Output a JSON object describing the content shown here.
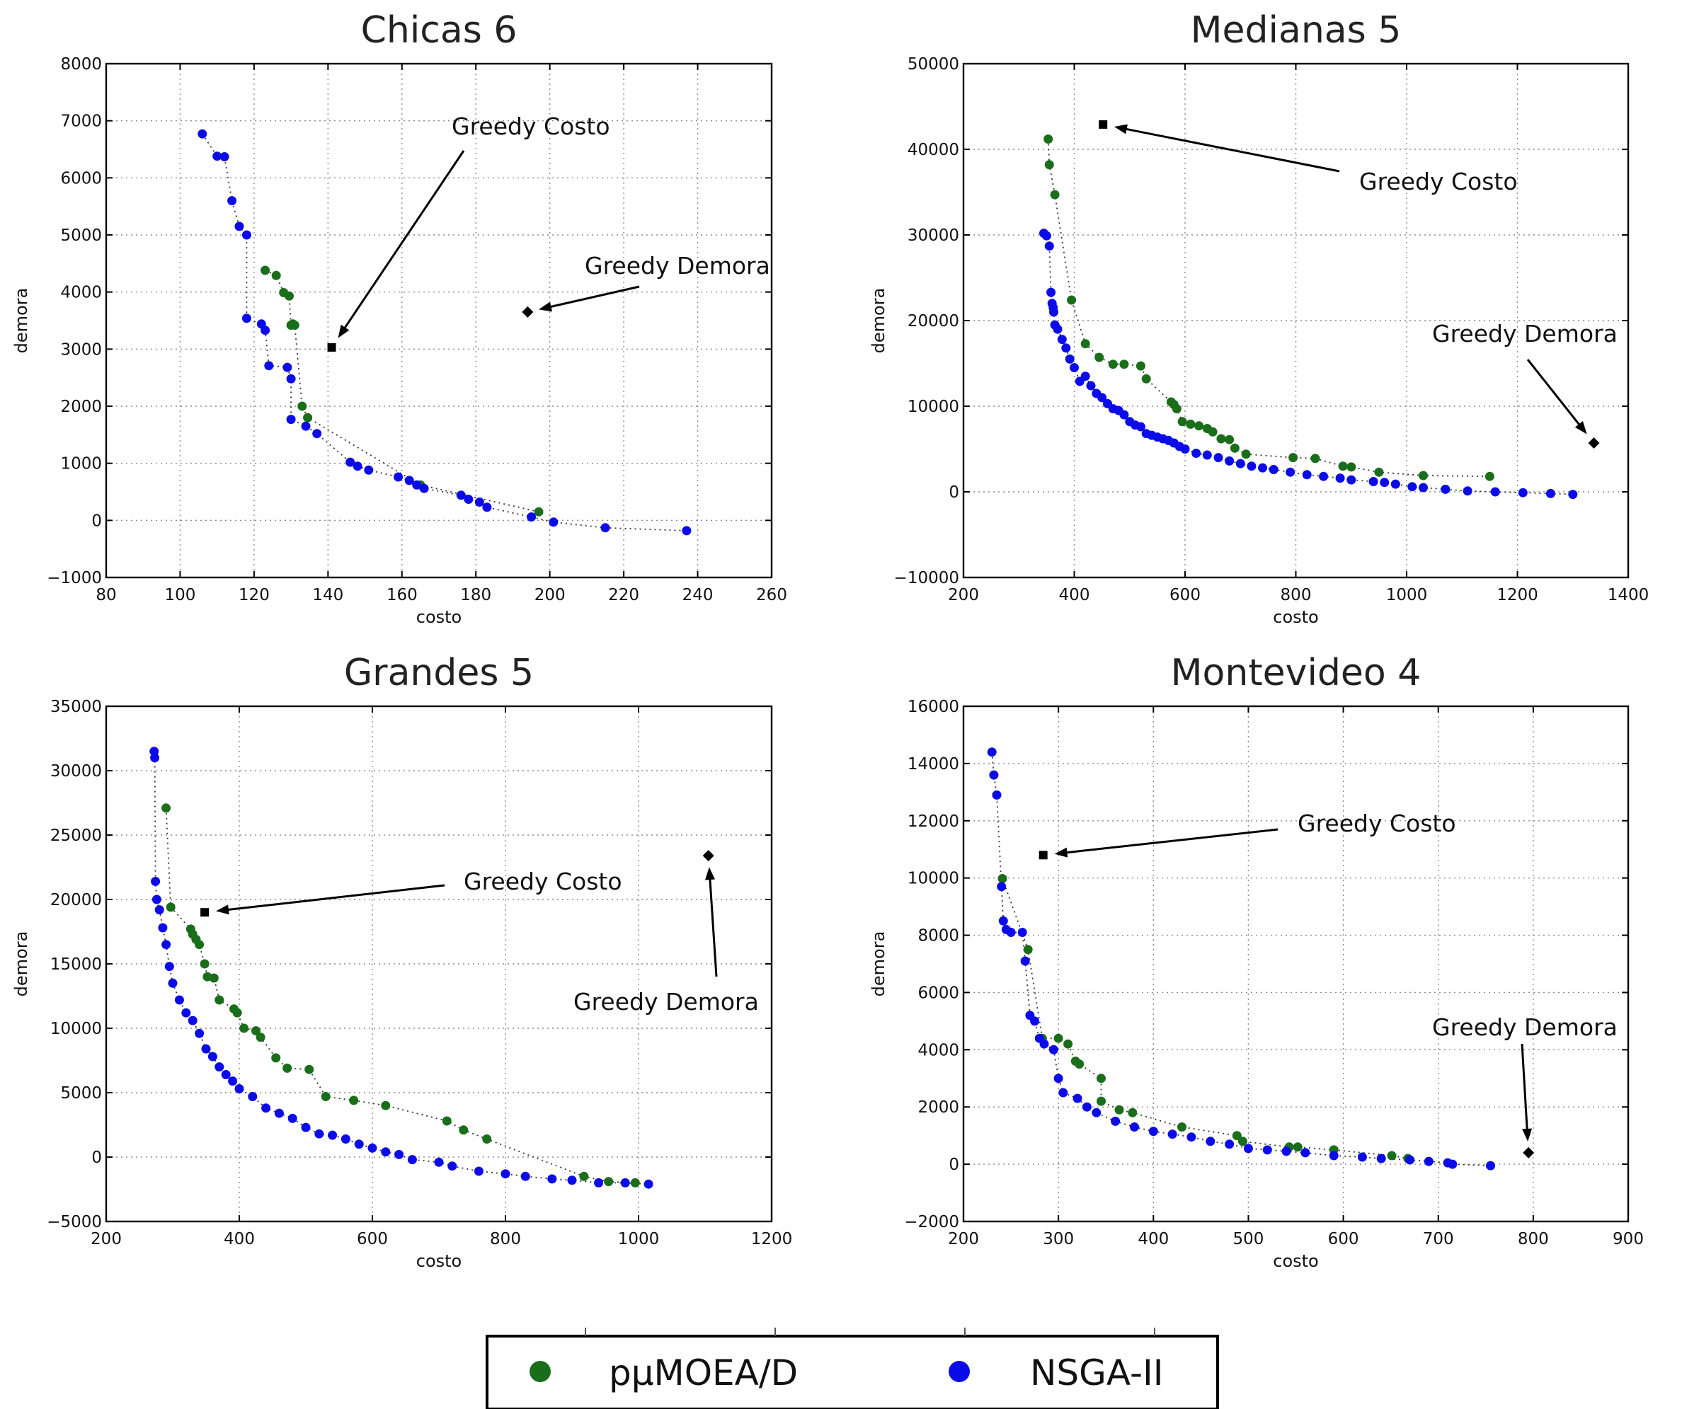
{
  "chart_data": [
    {
      "type": "scatter",
      "title": "Chicas 6",
      "xlabel": "costo",
      "ylabel": "demora",
      "xlim": [
        80,
        260
      ],
      "ylim": [
        -1000,
        8000
      ],
      "xticks": [
        80,
        100,
        120,
        140,
        160,
        180,
        200,
        220,
        240,
        260
      ],
      "yticks": [
        -1000,
        0,
        1000,
        2000,
        3000,
        4000,
        5000,
        6000,
        7000,
        8000
      ],
      "grid": true,
      "series": [
        {
          "name": "pμMOEA/D",
          "color": "#1a6e1a",
          "x": [
            123,
            126,
            128,
            129.5,
            130,
            130.5,
            131,
            133,
            134.5,
            165,
            197
          ],
          "y": [
            4380,
            4290,
            3990,
            3930,
            3420,
            3440,
            3420,
            2000,
            1800,
            620,
            150
          ]
        },
        {
          "name": "NSGA-II",
          "color": "#0b0bea",
          "x": [
            106,
            110,
            112,
            114,
            116,
            118,
            118,
            122,
            123,
            124,
            129,
            130,
            130,
            134,
            137,
            146,
            148,
            151,
            159,
            162,
            164,
            166,
            176,
            178,
            181,
            183,
            195,
            201,
            215,
            237
          ],
          "y": [
            6770,
            6380,
            6370,
            5600,
            5150,
            5000,
            3540,
            3440,
            3330,
            2710,
            2680,
            2480,
            1770,
            1650,
            1520,
            1020,
            950,
            880,
            760,
            700,
            620,
            560,
            440,
            370,
            320,
            230,
            60,
            -30,
            -130,
            -180
          ]
        }
      ],
      "markers": [
        {
          "label": "Greedy Costo",
          "shape": "square",
          "x": 141,
          "y": 3030
        },
        {
          "label": "Greedy Demora",
          "shape": "diamond",
          "x": 194,
          "y": 3650
        }
      ]
    },
    {
      "type": "scatter",
      "title": "Medianas 5",
      "xlabel": "costo",
      "ylabel": "demora",
      "xlim": [
        200,
        1400
      ],
      "ylim": [
        -10000,
        50000
      ],
      "xticks": [
        200,
        400,
        600,
        800,
        1000,
        1200,
        1400
      ],
      "yticks": [
        -10000,
        0,
        10000,
        20000,
        30000,
        40000,
        50000
      ],
      "grid": true,
      "series": [
        {
          "name": "pμMOEA/D",
          "color": "#1a6e1a",
          "x": [
            353,
            355,
            365,
            395,
            420,
            445,
            470,
            490,
            520,
            530,
            575,
            580,
            585,
            595,
            610,
            625,
            640,
            650,
            665,
            680,
            690,
            710,
            795,
            835,
            885,
            900,
            950,
            1030,
            1150
          ],
          "y": [
            41200,
            38200,
            34700,
            22400,
            17300,
            15700,
            14900,
            14900,
            14700,
            13200,
            10500,
            10200,
            9700,
            8200,
            7900,
            7700,
            7400,
            7000,
            6200,
            6100,
            5100,
            4400,
            4000,
            3900,
            3000,
            2900,
            2300,
            1900,
            1800
          ]
        },
        {
          "name": "NSGA-II",
          "color": "#0b0bea",
          "x": [
            345,
            350,
            355,
            358,
            360,
            362,
            363,
            365,
            370,
            378,
            385,
            392,
            400,
            410,
            420,
            430,
            440,
            450,
            460,
            470,
            480,
            490,
            500,
            510,
            520,
            530,
            540,
            550,
            560,
            570,
            580,
            590,
            600,
            620,
            640,
            660,
            680,
            700,
            720,
            740,
            760,
            790,
            820,
            850,
            880,
            900,
            940,
            960,
            980,
            1010,
            1030,
            1070,
            1110,
            1160,
            1210,
            1260,
            1300
          ],
          "y": [
            30200,
            29900,
            28700,
            23300,
            22000,
            21500,
            21000,
            19500,
            19000,
            17800,
            16800,
            15500,
            14500,
            12900,
            13500,
            12400,
            11500,
            11000,
            10300,
            9700,
            9500,
            9000,
            8200,
            7800,
            7600,
            6800,
            6600,
            6400,
            6200,
            6000,
            5700,
            5300,
            5000,
            4500,
            4300,
            4000,
            3600,
            3300,
            3000,
            2800,
            2600,
            2300,
            2000,
            1800,
            1600,
            1400,
            1200,
            1100,
            900,
            600,
            500,
            300,
            100,
            0,
            -100,
            -200,
            -300
          ]
        }
      ],
      "markers": [
        {
          "label": "Greedy Costo",
          "shape": "square",
          "x": 452,
          "y": 42900
        },
        {
          "label": "Greedy Demora",
          "shape": "diamond",
          "x": 1338,
          "y": 5700
        }
      ]
    },
    {
      "type": "scatter",
      "title": "Grandes 5",
      "xlabel": "costo",
      "ylabel": "demora",
      "xlim": [
        200,
        1200
      ],
      "ylim": [
        -5000,
        35000
      ],
      "xticks": [
        200,
        400,
        600,
        800,
        1000,
        1200
      ],
      "yticks": [
        -5000,
        0,
        5000,
        10000,
        15000,
        20000,
        25000,
        30000,
        35000
      ],
      "grid": true,
      "series": [
        {
          "name": "pμMOEA/D",
          "color": "#1a6e1a",
          "x": [
            290,
            297,
            327,
            330,
            335,
            340,
            348,
            352,
            362,
            370,
            392,
            397,
            407,
            425,
            432,
            455,
            472,
            505,
            530,
            572,
            620,
            712,
            737,
            772,
            918,
            955,
            995
          ],
          "y": [
            27100,
            19400,
            17700,
            17300,
            16900,
            16500,
            15000,
            14000,
            13900,
            12200,
            11500,
            11200,
            10000,
            9800,
            9300,
            7700,
            6900,
            6800,
            4700,
            4400,
            4000,
            2800,
            2100,
            1400,
            -1500,
            -1900,
            -2000
          ]
        },
        {
          "name": "NSGA-II",
          "color": "#0b0bea",
          "x": [
            272,
            273,
            274,
            276,
            280,
            285,
            290,
            295,
            300,
            310,
            320,
            330,
            340,
            350,
            360,
            370,
            380,
            390,
            400,
            420,
            440,
            460,
            480,
            500,
            520,
            540,
            560,
            580,
            600,
            620,
            640,
            660,
            700,
            720,
            760,
            800,
            830,
            870,
            900,
            940,
            980,
            1015
          ],
          "y": [
            31500,
            31000,
            21400,
            20000,
            19200,
            17800,
            16500,
            14800,
            13500,
            12200,
            11200,
            10600,
            9600,
            8400,
            7800,
            7000,
            6400,
            5900,
            5300,
            4700,
            3800,
            3400,
            3000,
            2300,
            1800,
            1700,
            1400,
            1000,
            700,
            400,
            200,
            -200,
            -400,
            -700,
            -1100,
            -1300,
            -1500,
            -1700,
            -1800,
            -2000,
            -2000,
            -2100
          ]
        }
      ],
      "markers": [
        {
          "label": "Greedy Costo",
          "shape": "square",
          "x": 348,
          "y": 19000
        },
        {
          "label": "Greedy Demora",
          "shape": "diamond",
          "x": 1105,
          "y": 23400
        }
      ]
    },
    {
      "type": "scatter",
      "title": "Montevideo 4",
      "xlabel": "costo",
      "ylabel": "demora",
      "xlim": [
        200,
        900
      ],
      "ylim": [
        -2000,
        16000
      ],
      "xticks": [
        200,
        300,
        400,
        500,
        600,
        700,
        800,
        900
      ],
      "yticks": [
        -2000,
        0,
        2000,
        4000,
        6000,
        8000,
        10000,
        12000,
        14000,
        16000
      ],
      "grid": true,
      "series": [
        {
          "name": "pμMOEA/D",
          "color": "#1a6e1a",
          "x": [
            241,
            268,
            283,
            300,
            310,
            318,
            322,
            345,
            345,
            364,
            378,
            430,
            488,
            494,
            543,
            552,
            590,
            651,
            668
          ],
          "y": [
            9980,
            7500,
            4400,
            4400,
            4200,
            3600,
            3500,
            3000,
            2200,
            1900,
            1800,
            1300,
            1000,
            800,
            600,
            600,
            500,
            300,
            200
          ]
        },
        {
          "name": "NSGA-II",
          "color": "#0b0bea",
          "x": [
            230,
            232,
            235,
            240,
            242,
            245,
            250,
            262,
            265,
            270,
            275,
            280,
            285,
            295,
            300,
            305,
            320,
            330,
            340,
            360,
            380,
            400,
            420,
            440,
            460,
            480,
            500,
            520,
            540,
            560,
            590,
            620,
            640,
            670,
            690,
            710,
            715,
            755
          ],
          "y": [
            14400,
            13600,
            12900,
            9700,
            8500,
            8200,
            8100,
            8100,
            7100,
            5200,
            5000,
            4400,
            4200,
            4000,
            3000,
            2500,
            2300,
            2000,
            1800,
            1500,
            1300,
            1150,
            1050,
            950,
            800,
            700,
            550,
            500,
            450,
            400,
            300,
            250,
            200,
            150,
            100,
            50,
            0,
            -50
          ]
        }
      ],
      "markers": [
        {
          "label": "Greedy Costo",
          "shape": "square",
          "x": 284,
          "y": 10800
        },
        {
          "label": "Greedy Demora",
          "shape": "diamond",
          "x": 795,
          "y": 400
        }
      ]
    }
  ],
  "legend": {
    "placement": "bottom-center",
    "items": [
      {
        "label": "pμMOEA/D",
        "color": "#1a6e1a"
      },
      {
        "label": "NSGA-II",
        "color": "#0b0bea"
      }
    ]
  }
}
